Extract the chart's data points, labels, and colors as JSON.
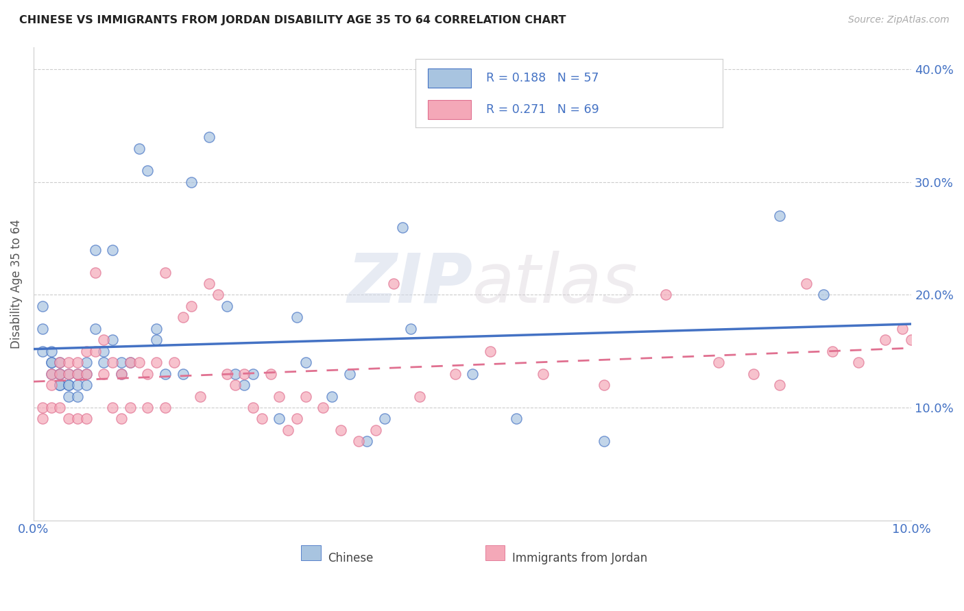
{
  "title": "CHINESE VS IMMIGRANTS FROM JORDAN DISABILITY AGE 35 TO 64 CORRELATION CHART",
  "source": "Source: ZipAtlas.com",
  "ylabel": "Disability Age 35 to 64",
  "xlim": [
    0.0,
    0.1
  ],
  "ylim": [
    0.0,
    0.42
  ],
  "color_chinese": "#a8c4e0",
  "color_jordan": "#f4a8b8",
  "color_chinese_line": "#4472c4",
  "color_jordan_line": "#e07090",
  "watermark_zip": "ZIP",
  "watermark_atlas": "atlas",
  "chinese_x": [
    0.001,
    0.001,
    0.001,
    0.002,
    0.002,
    0.002,
    0.002,
    0.003,
    0.003,
    0.003,
    0.003,
    0.003,
    0.004,
    0.004,
    0.004,
    0.004,
    0.005,
    0.005,
    0.005,
    0.006,
    0.006,
    0.006,
    0.007,
    0.007,
    0.008,
    0.008,
    0.009,
    0.009,
    0.01,
    0.01,
    0.011,
    0.012,
    0.013,
    0.014,
    0.014,
    0.015,
    0.017,
    0.018,
    0.02,
    0.022,
    0.023,
    0.024,
    0.025,
    0.028,
    0.03,
    0.031,
    0.034,
    0.036,
    0.038,
    0.04,
    0.042,
    0.043,
    0.05,
    0.055,
    0.065,
    0.085,
    0.09
  ],
  "chinese_y": [
    0.19,
    0.17,
    0.15,
    0.15,
    0.14,
    0.14,
    0.13,
    0.14,
    0.13,
    0.13,
    0.12,
    0.12,
    0.13,
    0.12,
    0.12,
    0.11,
    0.13,
    0.12,
    0.11,
    0.14,
    0.13,
    0.12,
    0.24,
    0.17,
    0.15,
    0.14,
    0.24,
    0.16,
    0.14,
    0.13,
    0.14,
    0.33,
    0.31,
    0.17,
    0.16,
    0.13,
    0.13,
    0.3,
    0.34,
    0.19,
    0.13,
    0.12,
    0.13,
    0.09,
    0.18,
    0.14,
    0.11,
    0.13,
    0.07,
    0.09,
    0.26,
    0.17,
    0.13,
    0.09,
    0.07,
    0.27,
    0.2
  ],
  "jordan_x": [
    0.001,
    0.001,
    0.002,
    0.002,
    0.002,
    0.003,
    0.003,
    0.003,
    0.004,
    0.004,
    0.004,
    0.005,
    0.005,
    0.005,
    0.006,
    0.006,
    0.006,
    0.007,
    0.007,
    0.008,
    0.008,
    0.009,
    0.009,
    0.01,
    0.01,
    0.011,
    0.011,
    0.012,
    0.013,
    0.013,
    0.014,
    0.015,
    0.015,
    0.016,
    0.017,
    0.018,
    0.019,
    0.02,
    0.021,
    0.022,
    0.023,
    0.024,
    0.025,
    0.026,
    0.027,
    0.028,
    0.029,
    0.03,
    0.031,
    0.033,
    0.035,
    0.037,
    0.039,
    0.041,
    0.044,
    0.048,
    0.052,
    0.058,
    0.065,
    0.072,
    0.078,
    0.082,
    0.085,
    0.088,
    0.091,
    0.094,
    0.097,
    0.099,
    0.1
  ],
  "jordan_y": [
    0.09,
    0.1,
    0.13,
    0.12,
    0.1,
    0.14,
    0.13,
    0.1,
    0.14,
    0.13,
    0.09,
    0.14,
    0.13,
    0.09,
    0.15,
    0.13,
    0.09,
    0.22,
    0.15,
    0.16,
    0.13,
    0.14,
    0.1,
    0.13,
    0.09,
    0.14,
    0.1,
    0.14,
    0.13,
    0.1,
    0.14,
    0.22,
    0.1,
    0.14,
    0.18,
    0.19,
    0.11,
    0.21,
    0.2,
    0.13,
    0.12,
    0.13,
    0.1,
    0.09,
    0.13,
    0.11,
    0.08,
    0.09,
    0.11,
    0.1,
    0.08,
    0.07,
    0.08,
    0.21,
    0.11,
    0.13,
    0.15,
    0.13,
    0.12,
    0.2,
    0.14,
    0.13,
    0.12,
    0.21,
    0.15,
    0.14,
    0.16,
    0.17,
    0.16
  ]
}
